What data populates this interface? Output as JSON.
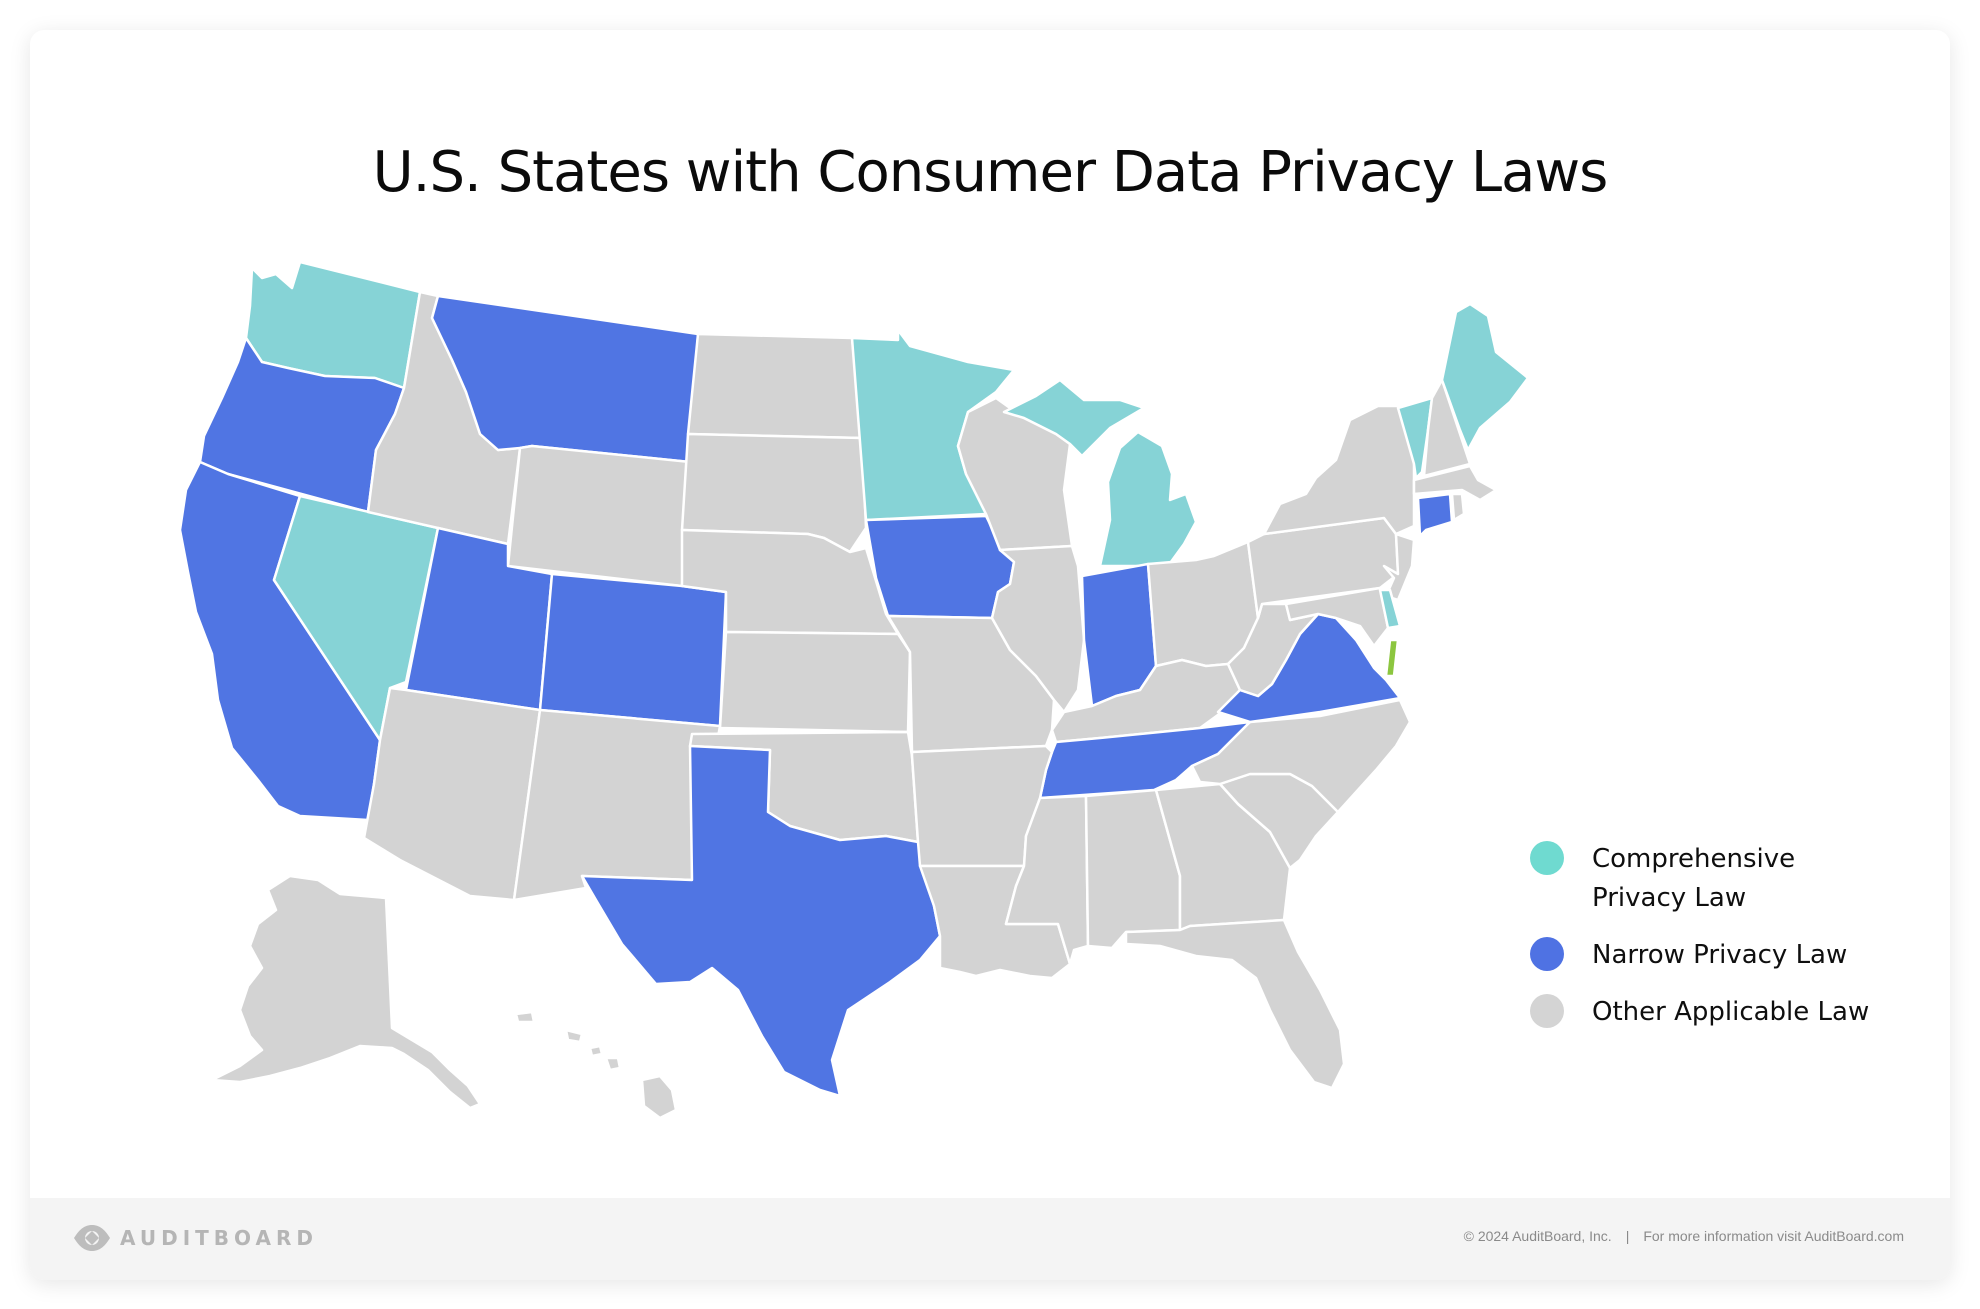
{
  "title": "U.S. States with Consumer Data Privacy Laws",
  "colors": {
    "comprehensive": "#86d3d6",
    "narrow": "#5075e3",
    "other": "#d3d3d3",
    "special": "#8cc63f",
    "legend_comprehensive": "#6fdad0",
    "legend_narrow": "#4f72e3",
    "legend_other": "#d4d4d4"
  },
  "legend": [
    {
      "key": "comprehensive",
      "line1": "Comprehensive",
      "line2": "Privacy Law"
    },
    {
      "key": "narrow",
      "line1": "Narrow Privacy Law",
      "line2": ""
    },
    {
      "key": "other",
      "line1": "Other Applicable Law",
      "line2": ""
    }
  ],
  "map_data": {
    "comprehensive": [
      "WA",
      "NV",
      "MN",
      "MI",
      "ME",
      "VT",
      "DE"
    ],
    "narrow": [
      "OR",
      "CA",
      "MT",
      "UT",
      "CO",
      "TX",
      "IA",
      "IN",
      "TN",
      "VA",
      "CT"
    ],
    "special": [
      "MD-shore"
    ],
    "other": [
      "ID",
      "WY",
      "ND",
      "SD",
      "NE",
      "KS",
      "OK",
      "NM",
      "AZ",
      "MO",
      "AR",
      "LA",
      "WI",
      "IL",
      "MS",
      "AL",
      "GA",
      "FL",
      "SC",
      "NC",
      "KY",
      "OH",
      "WV",
      "PA",
      "NY",
      "NJ",
      "NH",
      "MA",
      "RI",
      "MD",
      "AK",
      "HI"
    ]
  },
  "footer": {
    "logo_text": "AUDITBOARD",
    "copyright": "© 2024  AuditBoard, Inc.",
    "separator": "|",
    "info": "For more information visit AuditBoard.com"
  }
}
